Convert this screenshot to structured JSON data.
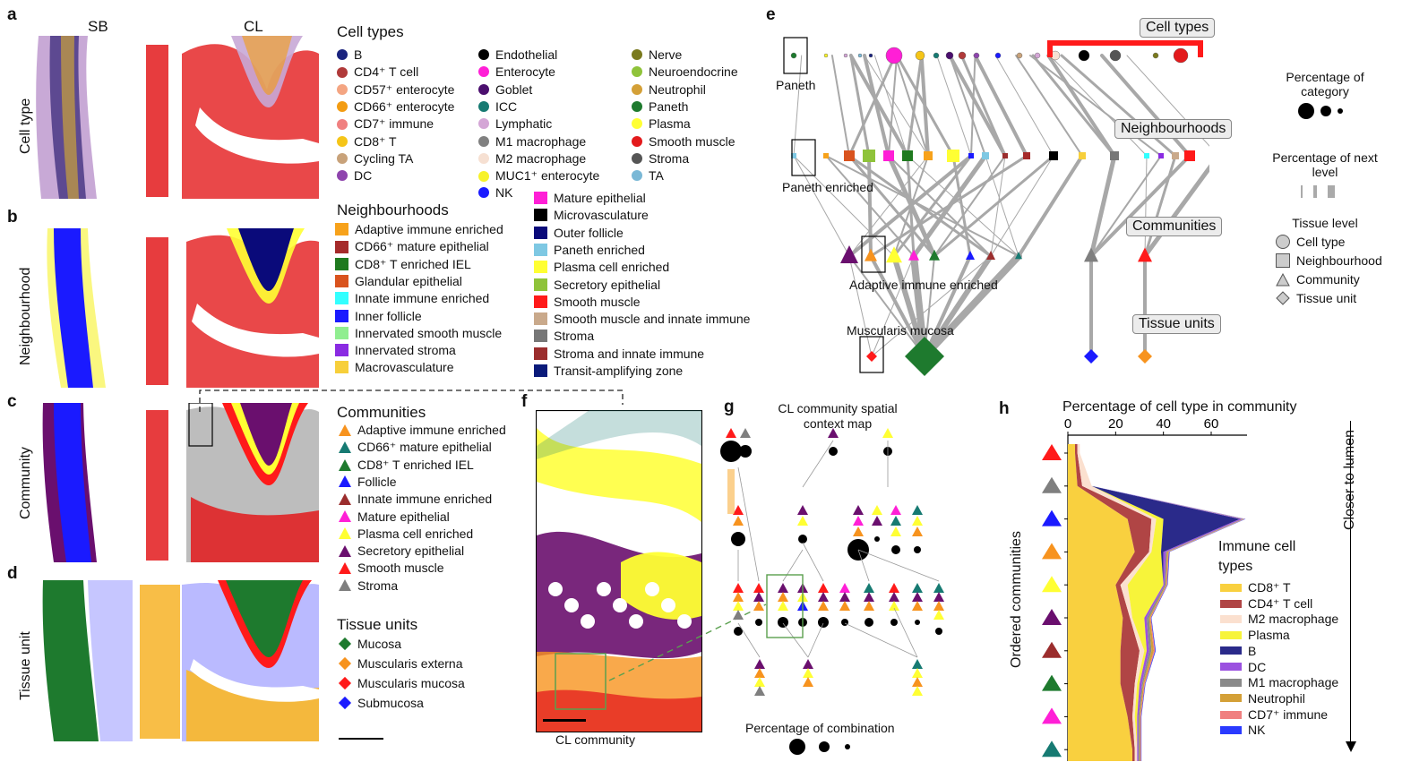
{
  "panel_letters": [
    "a",
    "b",
    "c",
    "d",
    "e",
    "f",
    "g",
    "h"
  ],
  "columns": {
    "sb": "SB",
    "cl": "CL"
  },
  "row_labels": [
    "Cell type",
    "Neighbourhood",
    "Community",
    "Tissue unit"
  ],
  "cell_types": {
    "title": "Cell types",
    "items": [
      {
        "label": "B",
        "color": "#1a237e"
      },
      {
        "label": "CD4⁺ T cell",
        "color": "#b03a3a"
      },
      {
        "label": "CD57⁺ enterocyte",
        "color": "#f4a582"
      },
      {
        "label": "CD66⁺ enterocyte",
        "color": "#f39c12"
      },
      {
        "label": "CD7⁺ immune",
        "color": "#f08080"
      },
      {
        "label": "CD8⁺ T",
        "color": "#f5c518"
      },
      {
        "label": "Cycling TA",
        "color": "#c8a27a"
      },
      {
        "label": "DC",
        "color": "#8e44ad"
      },
      {
        "label": "Endothelial",
        "color": "#000000"
      },
      {
        "label": "Enterocyte",
        "color": "#ff1fd6"
      },
      {
        "label": "Goblet",
        "color": "#4b0f6e"
      },
      {
        "label": "ICC",
        "color": "#167a72"
      },
      {
        "label": "Lymphatic",
        "color": "#d4a6d6"
      },
      {
        "label": "M1 macrophage",
        "color": "#808080"
      },
      {
        "label": "M2 macrophage",
        "color": "#f6e0d2"
      },
      {
        "label": "MUC1⁺ enterocyte",
        "color": "#f7f22a"
      },
      {
        "label": "NK",
        "color": "#1a1aff"
      },
      {
        "label": "Nerve",
        "color": "#7a7a1e"
      },
      {
        "label": "Neuroendocrine",
        "color": "#8fc33a"
      },
      {
        "label": "Neutrophil",
        "color": "#d4a037"
      },
      {
        "label": "Paneth",
        "color": "#1e7a2e"
      },
      {
        "label": "Plasma",
        "color": "#ffff33"
      },
      {
        "label": "Smooth muscle",
        "color": "#e31a1c"
      },
      {
        "label": "Stroma",
        "color": "#555555"
      },
      {
        "label": "TA",
        "color": "#7ab8d6"
      }
    ]
  },
  "neighbourhoods": {
    "title": "Neighbourhoods",
    "items": [
      {
        "label": "Adaptive immune enriched",
        "color": "#f7a21b"
      },
      {
        "label": "CD66⁺ mature epithelial",
        "color": "#a52a2a"
      },
      {
        "label": "CD8⁺ T enriched IEL",
        "color": "#1f7a1f"
      },
      {
        "label": "Glandular epithelial",
        "color": "#d9531e"
      },
      {
        "label": "Innate immune enriched",
        "color": "#33ffff"
      },
      {
        "label": "Inner follicle",
        "color": "#1a1aff"
      },
      {
        "label": "Innervated smooth muscle",
        "color": "#90ee90"
      },
      {
        "label": "Innervated stroma",
        "color": "#8a2be2"
      },
      {
        "label": "Macrovasculature",
        "color": "#f7cf3b"
      },
      {
        "label": "Mature epithelial",
        "color": "#ff1fd6"
      },
      {
        "label": "Microvasculature",
        "color": "#000000"
      },
      {
        "label": "Outer follicle",
        "color": "#0a0a7a"
      },
      {
        "label": "Paneth enriched",
        "color": "#7ec8e3"
      },
      {
        "label": "Plasma cell enriched",
        "color": "#ffff33"
      },
      {
        "label": "Secretory epithelial",
        "color": "#8fc33a"
      },
      {
        "label": "Smooth muscle",
        "color": "#ff1a1a"
      },
      {
        "label": "Smooth muscle and innate immune",
        "color": "#c9a98b"
      },
      {
        "label": "Stroma",
        "color": "#777777"
      },
      {
        "label": "Stroma and innate immune",
        "color": "#9b2d2d"
      },
      {
        "label": "Transit-amplifying zone",
        "color": "#0a1a7a"
      }
    ]
  },
  "communities": {
    "title": "Communities",
    "items": [
      {
        "label": "Adaptive immune enriched",
        "color": "#f7931e"
      },
      {
        "label": "CD66⁺ mature epithelial",
        "color": "#167a72"
      },
      {
        "label": "CD8⁺ T enriched IEL",
        "color": "#1e7a2e"
      },
      {
        "label": "Follicle",
        "color": "#1a1aff"
      },
      {
        "label": "Innate immune enriched",
        "color": "#9b2d2d"
      },
      {
        "label": "Mature epithelial",
        "color": "#ff1fd6"
      },
      {
        "label": "Plasma cell enriched",
        "color": "#ffff33"
      },
      {
        "label": "Secretory epithelial",
        "color": "#6a0f6e"
      },
      {
        "label": "Smooth muscle",
        "color": "#ff1a1a"
      },
      {
        "label": "Stroma",
        "color": "#7f7f7f"
      }
    ]
  },
  "tissue_units": {
    "title": "Tissue units",
    "items": [
      {
        "label": "Mucosa",
        "color": "#1e7a2e"
      },
      {
        "label": "Muscularis externa",
        "color": "#f7931e"
      },
      {
        "label": "Muscularis mucosa",
        "color": "#ff1a1a"
      },
      {
        "label": "Submucosa",
        "color": "#1a1aff"
      }
    ]
  },
  "panel_e": {
    "level_labels": [
      "Cell types",
      "Neighbourhoods",
      "Communities",
      "Tissue units"
    ],
    "annotations": [
      "Paneth",
      "Paneth enriched",
      "Adaptive immune enriched",
      "Muscularis mucosa"
    ],
    "legend": {
      "pct_category": "Percentage of category",
      "pct_next": "Percentage of next level",
      "tissue_level": "Tissue level",
      "levels": [
        "Cell type",
        "Neighbourhood",
        "Community",
        "Tissue unit"
      ]
    }
  },
  "panel_f": {
    "caption": "CL community"
  },
  "panel_g": {
    "title": "CL community spatial context map",
    "footer": "Percentage of combination"
  },
  "panel_h": {
    "title": "Percentage of cell type in community",
    "x_ticks": [
      "0",
      "20",
      "40",
      "60"
    ],
    "ylabel": "Ordered communities",
    "side_label": "Closer to lumen",
    "legend_title": "Immune cell types",
    "legend": [
      {
        "label": "CD8⁺ T",
        "color": "#f9d03f"
      },
      {
        "label": "CD4⁺ T cell",
        "color": "#b04545"
      },
      {
        "label": "M2 macrophage",
        "color": "#fbe0cf"
      },
      {
        "label": "Plasma",
        "color": "#f7f43a"
      },
      {
        "label": "B",
        "color": "#2a2a8a"
      },
      {
        "label": "DC",
        "color": "#9b51e0"
      },
      {
        "label": "M1 macrophage",
        "color": "#8a8a8a"
      },
      {
        "label": "Neutrophil",
        "color": "#d4a037"
      },
      {
        "label": "CD7⁺ immune",
        "color": "#f08080"
      },
      {
        "label": "NK",
        "color": "#2a3aff"
      }
    ],
    "community_markers": [
      "#ff1a1a",
      "#7f7f7f",
      "#1a1aff",
      "#f7931e",
      "#ffff33",
      "#6a0f6e",
      "#9b2d2d",
      "#1e7a2e",
      "#ff1fd6",
      "#167a72"
    ]
  },
  "chart_data": {
    "type": "area",
    "title": "Percentage of cell type in community",
    "xlabel": "",
    "ylabel": "Ordered communities",
    "xlim": [
      0,
      75
    ],
    "categories": [
      "Smooth muscle",
      "Stroma",
      "Follicle",
      "Adaptive immune enriched",
      "Plasma cell enriched",
      "Secretory epithelial",
      "Innate immune enriched",
      "CD8⁺ T enriched IEL",
      "Mature epithelial",
      "CD66⁺ mature epithelial"
    ],
    "series": [
      {
        "name": "CD8⁺ T",
        "values": [
          3,
          4,
          25,
          28,
          20,
          23,
          22,
          22,
          25,
          27
        ]
      },
      {
        "name": "CD4⁺ T cell",
        "values": [
          1,
          2,
          10,
          6,
          2,
          3,
          8,
          6,
          2,
          1
        ]
      },
      {
        "name": "M2 macrophage",
        "values": [
          1,
          4,
          2,
          1,
          3,
          1,
          2,
          1,
          1,
          1
        ]
      },
      {
        "name": "Plasma",
        "values": [
          0,
          0,
          3,
          4,
          15,
          5,
          1,
          1,
          1,
          0
        ]
      },
      {
        "name": "B",
        "values": [
          0,
          0,
          32,
          1,
          0,
          0,
          0,
          0,
          0,
          0
        ]
      },
      {
        "name": "DC",
        "values": [
          0,
          0,
          1,
          1,
          0.5,
          1,
          1,
          1,
          0.5,
          0.5
        ]
      },
      {
        "name": "M1 macrophage",
        "values": [
          0,
          0,
          0.5,
          0.5,
          0.5,
          1,
          1,
          0.5,
          0.5,
          0.5
        ]
      },
      {
        "name": "Neutrophil",
        "values": [
          0,
          0,
          0.3,
          0.5,
          0.3,
          0.5,
          1,
          0.5,
          0.3,
          0.3
        ]
      },
      {
        "name": "CD7⁺ immune",
        "values": [
          0,
          0,
          0.3,
          0.3,
          0.3,
          0.3,
          0.5,
          0.3,
          0.3,
          0.3
        ]
      },
      {
        "name": "NK",
        "values": [
          0,
          0,
          0.3,
          0.3,
          0.2,
          0.2,
          0.3,
          0.2,
          0.2,
          0.2
        ]
      }
    ]
  }
}
